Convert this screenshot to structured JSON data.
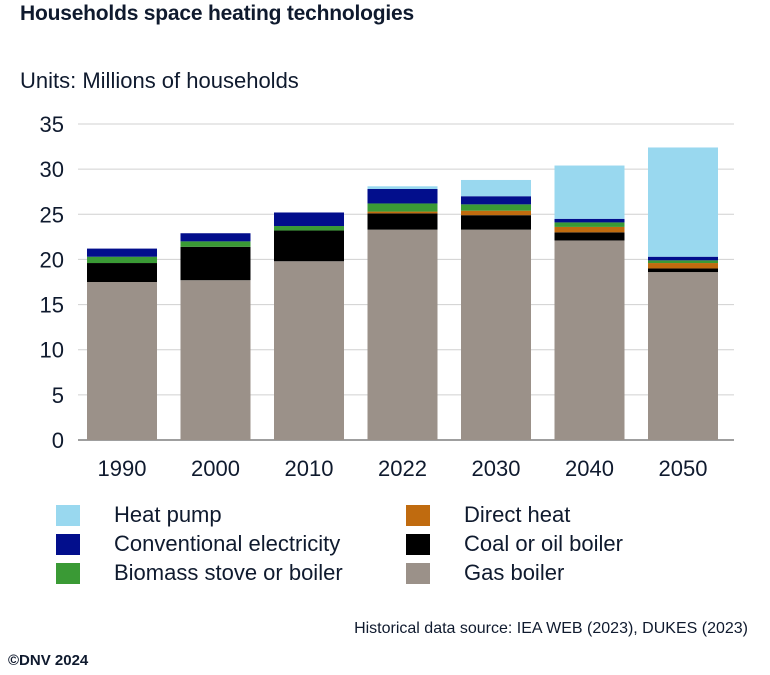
{
  "header": {
    "title": "Households space heating technologies",
    "units": "Units: Millions of households"
  },
  "chart_data": {
    "type": "bar",
    "stacked": true,
    "title": "Households space heating technologies",
    "ylabel": "Units: Millions of households",
    "xlabel": "",
    "categories": [
      "1990",
      "2000",
      "2010",
      "2022",
      "2030",
      "2040",
      "2050"
    ],
    "ylim": [
      0,
      35
    ],
    "yticks": [
      0,
      5,
      10,
      15,
      20,
      25,
      30,
      35
    ],
    "grid": true,
    "series": [
      {
        "name": "Gas boiler",
        "color": "#9b9189",
        "values": [
          17.5,
          17.7,
          19.8,
          23.3,
          23.3,
          22.1,
          18.6
        ]
      },
      {
        "name": "Coal or oil boiler",
        "color": "#000000",
        "values": [
          2.1,
          3.7,
          3.4,
          1.8,
          1.6,
          0.9,
          0.4
        ]
      },
      {
        "name": "Direct heat",
        "color": "#c06b0f",
        "values": [
          0.0,
          0.0,
          0.0,
          0.2,
          0.5,
          0.6,
          0.6
        ]
      },
      {
        "name": "Biomass stove or boiler",
        "color": "#3a9a35",
        "values": [
          0.7,
          0.6,
          0.5,
          0.9,
          0.7,
          0.5,
          0.3
        ]
      },
      {
        "name": "Conventional electricity",
        "color": "#020e8c",
        "values": [
          0.9,
          0.9,
          1.5,
          1.6,
          0.9,
          0.4,
          0.4
        ]
      },
      {
        "name": "Heat pump",
        "color": "#99d8ef",
        "values": [
          0.0,
          0.0,
          0.0,
          0.3,
          1.8,
          5.9,
          12.1
        ]
      }
    ]
  },
  "legend": {
    "items": [
      {
        "label": "Heat pump",
        "color": "#99d8ef"
      },
      {
        "label": "Conventional electricity",
        "color": "#020e8c"
      },
      {
        "label": "Biomass stove or boiler",
        "color": "#3a9a35"
      },
      {
        "label": "Direct heat",
        "color": "#c06b0f"
      },
      {
        "label": "Coal or oil boiler",
        "color": "#000000"
      },
      {
        "label": "Gas boiler",
        "color": "#9b9189"
      }
    ]
  },
  "footer": {
    "source": "Historical data source: IEA WEB (2023), DUKES (2023)",
    "copyright": "©DNV 2024"
  }
}
